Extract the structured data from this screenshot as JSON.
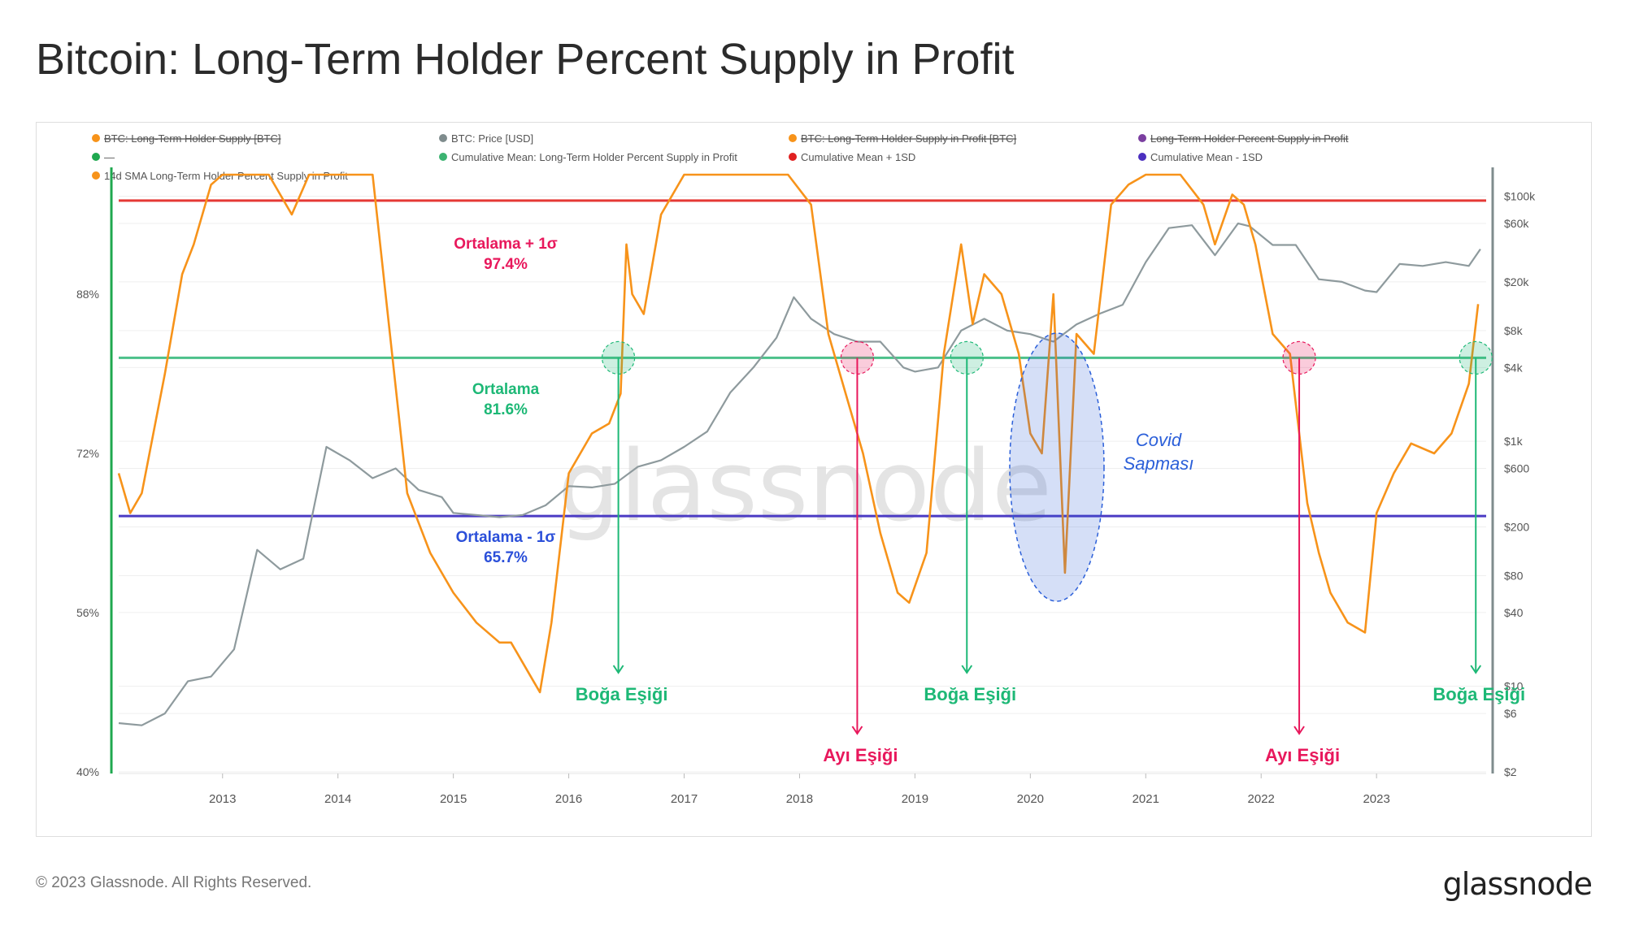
{
  "page": {
    "title": "Bitcoin: Long-Term Holder Percent Supply in Profit",
    "copyright": "© 2023 Glassnode. All Rights Reserved.",
    "logo": "glassnode",
    "watermark": "glassnode"
  },
  "chart_data": {
    "type": "line",
    "x_ticks": [
      "2013",
      "2014",
      "2015",
      "2016",
      "2017",
      "2018",
      "2019",
      "2020",
      "2021",
      "2022",
      "2023"
    ],
    "x_range": [
      2012.1,
      2023.95
    ],
    "y_left": {
      "ticks": [
        "88%",
        "72%",
        "56%",
        "40%"
      ],
      "values": [
        88,
        72,
        56,
        40
      ],
      "range": [
        40,
        100
      ]
    },
    "y_right": {
      "scale": "log",
      "ticks": [
        "$100k",
        "$60k",
        "$20k",
        "$8k",
        "$4k",
        "$1k",
        "$600",
        "$200",
        "$80",
        "$40",
        "$10",
        "$6",
        "$2"
      ],
      "values": [
        100000,
        60000,
        20000,
        8000,
        4000,
        1000,
        600,
        200,
        80,
        40,
        10,
        6,
        2
      ],
      "range": [
        2,
        150000
      ]
    },
    "legend": [
      {
        "label": "BTC: Long-Term Holder Supply [BTC]",
        "color": "#f7931a",
        "disabled": true
      },
      {
        "label": "BTC: Price [USD]",
        "color": "#7f8c8d",
        "disabled": false
      },
      {
        "label": "BTC: Long-Term Holder Supply in Profit [BTC]",
        "color": "#f7931a",
        "disabled": true
      },
      {
        "label": "Long-Term Holder Percent Supply in Profit",
        "color": "#7b3fa0",
        "disabled": true
      },
      {
        "label": "—",
        "color": "#1fa84f",
        "disabled": false
      },
      {
        "label": "Cumulative Mean: Long-Term Holder Percent Supply in Profit",
        "color": "#3cb371",
        "disabled": false
      },
      {
        "label": "Cumulative Mean + 1SD",
        "color": "#e02020",
        "disabled": false
      },
      {
        "label": "Cumulative Mean - 1SD",
        "color": "#4b2fbf",
        "disabled": false
      },
      {
        "label": "14d SMA Long-Term Holder Percent Supply in Profit",
        "color": "#f7931a",
        "disabled": false
      }
    ],
    "series": [
      {
        "name": "14d SMA Long-Term Holder Percent Supply in Profit",
        "axis": "left",
        "color": "#f7931a",
        "x": [
          2012.1,
          2012.2,
          2012.3,
          2012.5,
          2012.65,
          2012.75,
          2012.9,
          2013.0,
          2013.15,
          2013.4,
          2013.6,
          2013.75,
          2013.85,
          2014.0,
          2014.3,
          2014.45,
          2014.6,
          2014.8,
          2015.0,
          2015.2,
          2015.4,
          2015.5,
          2015.6,
          2015.7,
          2015.75,
          2015.85,
          2016.0,
          2016.2,
          2016.35,
          2016.45,
          2016.5,
          2016.55,
          2016.65,
          2016.8,
          2016.9,
          2017.0,
          2017.3,
          2017.6,
          2017.9,
          2018.1,
          2018.25,
          2018.4,
          2018.55,
          2018.7,
          2018.85,
          2018.95,
          2019.1,
          2019.25,
          2019.4,
          2019.5,
          2019.6,
          2019.75,
          2019.9,
          2020.0,
          2020.1,
          2020.2,
          2020.3,
          2020.4,
          2020.55,
          2020.7,
          2020.85,
          2021.0,
          2021.15,
          2021.3,
          2021.5,
          2021.6,
          2021.75,
          2021.85,
          2021.95,
          2022.1,
          2022.25,
          2022.4,
          2022.5,
          2022.6,
          2022.75,
          2022.9,
          2023.0,
          2023.15,
          2023.3,
          2023.5,
          2023.65,
          2023.8,
          2023.88
        ],
        "y": [
          70,
          66,
          68,
          80,
          90,
          93,
          99,
          100,
          100,
          100,
          96,
          100,
          100,
          100,
          100,
          84,
          68,
          62,
          58,
          55,
          53,
          53,
          51,
          49,
          48,
          55,
          70,
          74,
          75,
          78,
          93,
          88,
          86,
          96,
          98,
          100,
          100,
          100,
          100,
          97,
          84,
          78,
          72,
          64,
          58,
          57,
          62,
          82,
          93,
          85,
          90,
          88,
          82,
          74,
          72,
          88,
          60,
          84,
          82,
          97,
          99,
          100,
          100,
          100,
          97,
          93,
          98,
          97,
          93,
          84,
          82,
          67,
          62,
          58,
          55,
          54,
          66,
          70,
          73,
          72,
          74,
          79,
          87
        ]
      },
      {
        "name": "BTC: Price [USD]",
        "axis": "right",
        "color": "#8e9a9d",
        "x": [
          2012.1,
          2012.3,
          2012.5,
          2012.7,
          2012.9,
          2013.1,
          2013.3,
          2013.5,
          2013.7,
          2013.9,
          2014.1,
          2014.3,
          2014.5,
          2014.7,
          2014.9,
          2015.0,
          2015.2,
          2015.4,
          2015.6,
          2015.8,
          2016.0,
          2016.2,
          2016.4,
          2016.6,
          2016.8,
          2017.0,
          2017.2,
          2017.4,
          2017.6,
          2017.8,
          2017.95,
          2018.1,
          2018.3,
          2018.5,
          2018.7,
          2018.9,
          2019.0,
          2019.2,
          2019.4,
          2019.6,
          2019.8,
          2020.0,
          2020.2,
          2020.4,
          2020.6,
          2020.8,
          2021.0,
          2021.2,
          2021.4,
          2021.6,
          2021.8,
          2021.9,
          2022.1,
          2022.3,
          2022.5,
          2022.7,
          2022.9,
          2023.0,
          2023.2,
          2023.4,
          2023.6,
          2023.8,
          2023.9
        ],
        "y": [
          5,
          4.8,
          6,
          11,
          12,
          20,
          130,
          90,
          110,
          900,
          700,
          500,
          600,
          400,
          350,
          260,
          250,
          240,
          250,
          300,
          430,
          420,
          450,
          620,
          700,
          900,
          1200,
          2500,
          4000,
          7000,
          15000,
          10000,
          7500,
          6500,
          6500,
          4000,
          3700,
          4000,
          8000,
          10000,
          8000,
          7500,
          6500,
          9000,
          11000,
          13000,
          29000,
          55000,
          58000,
          33000,
          60000,
          57000,
          40000,
          40000,
          21000,
          20000,
          17000,
          16500,
          28000,
          27000,
          29000,
          27000,
          37000
        ]
      }
    ],
    "reference_lines": [
      {
        "label": "Ortalama + 1σ",
        "value_label": "97.4%",
        "value": 97.4,
        "color": "#e53935"
      },
      {
        "label": "Ortalama",
        "value_label": "81.6%",
        "value": 81.6,
        "color": "#4cc08a"
      },
      {
        "label": "Ortalama - 1σ",
        "value_label": "65.7%",
        "value": 65.7,
        "color": "#4b3bc4"
      }
    ],
    "annotations": [
      {
        "label": "Boğa Eşiği",
        "type": "bull",
        "x": 2016.43
      },
      {
        "label": "Ayı Eşiği",
        "type": "bear",
        "x": 2018.5
      },
      {
        "label": "Boğa Eşiği",
        "type": "bull",
        "x": 2019.45
      },
      {
        "label": "Ayı Eşiği",
        "type": "bear",
        "x": 2022.33
      },
      {
        "label": "Boğa Eşiği",
        "type": "bull",
        "x": 2023.86
      }
    ],
    "covid_label": [
      "Covid",
      "Sapması"
    ],
    "colors": {
      "bull": "#1db876",
      "bear": "#e8185c",
      "covid": "#2b5fd9"
    }
  }
}
